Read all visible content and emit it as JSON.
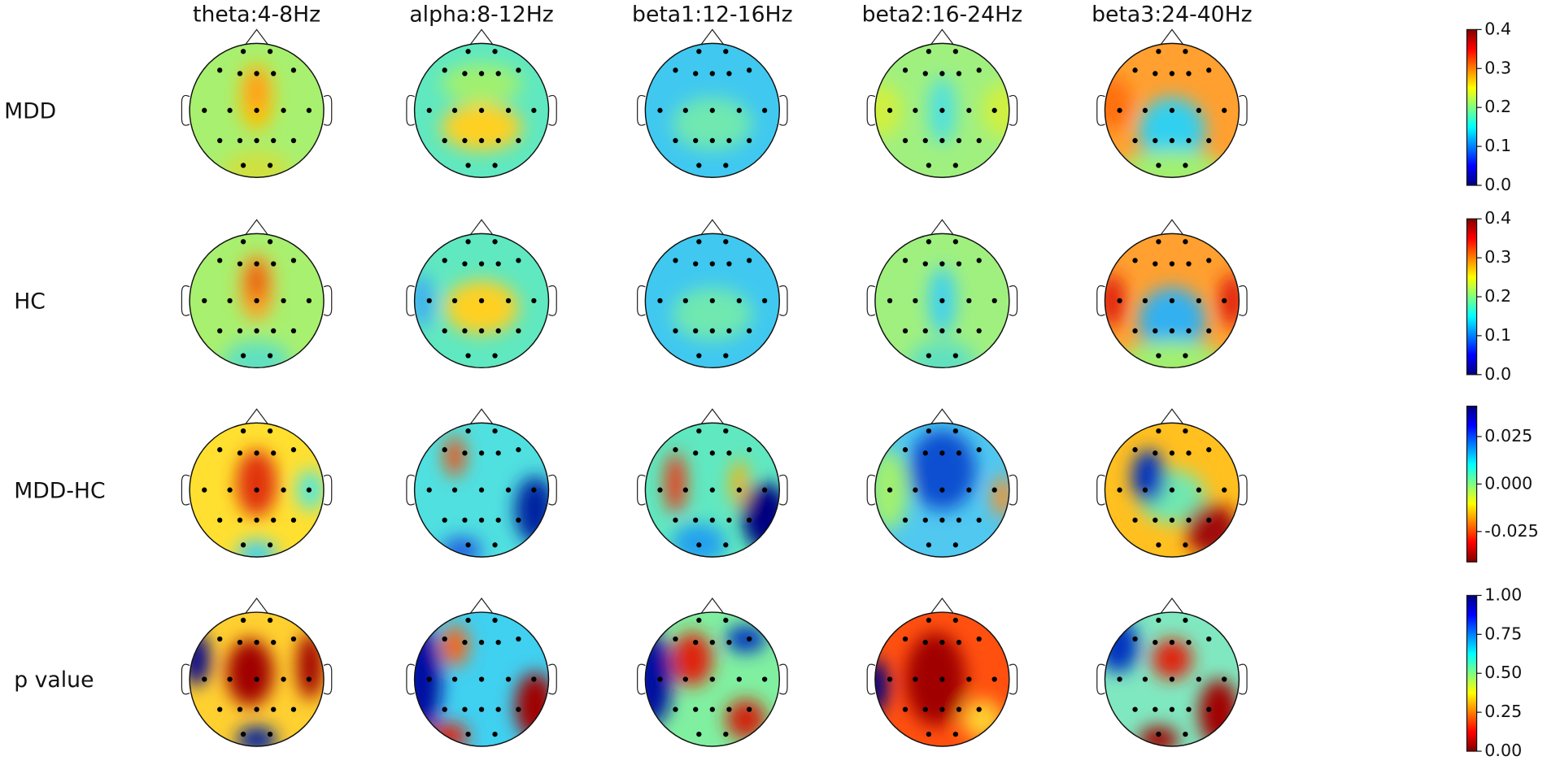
{
  "columns": [
    "theta:4-8Hz",
    "alpha:8-12Hz",
    "beta1:12-16Hz",
    "beta2:16-24Hz",
    "beta3:24-40Hz"
  ],
  "rows": [
    "MDD",
    "HC",
    "MDD-HC",
    "p value"
  ],
  "colorbars": [
    {
      "colormap": "jet",
      "lim": [
        0,
        0.4
      ],
      "ticks": [
        {
          "value": 0,
          "label": "0.0"
        },
        0.1,
        0.2,
        0.3,
        0.4
      ]
    },
    {
      "colormap": "jet",
      "lim": [
        0,
        0.4
      ],
      "ticks": [
        {
          "value": 0,
          "label": "0.0"
        },
        0.1,
        0.2,
        0.3,
        0.4
      ]
    },
    {
      "colormap": "jet_r",
      "lim": [
        -0.041,
        0.041
      ],
      "ticks": [
        {
          "value": -0.025,
          "label": "-0.025"
        },
        {
          "value": 0,
          "label": "0.000"
        },
        {
          "value": 0.025,
          "label": "0.025"
        }
      ]
    },
    {
      "colormap": "jet_r",
      "lim": [
        0,
        1
      ],
      "ticks": [
        {
          "value": 0,
          "label": "0.00"
        },
        {
          "value": 0.25,
          "label": "0.25"
        },
        {
          "value": 0.5,
          "label": "0.50"
        },
        {
          "value": 0.75,
          "label": "0.75"
        },
        {
          "value": 1,
          "label": "1.00"
        }
      ]
    }
  ]
}
